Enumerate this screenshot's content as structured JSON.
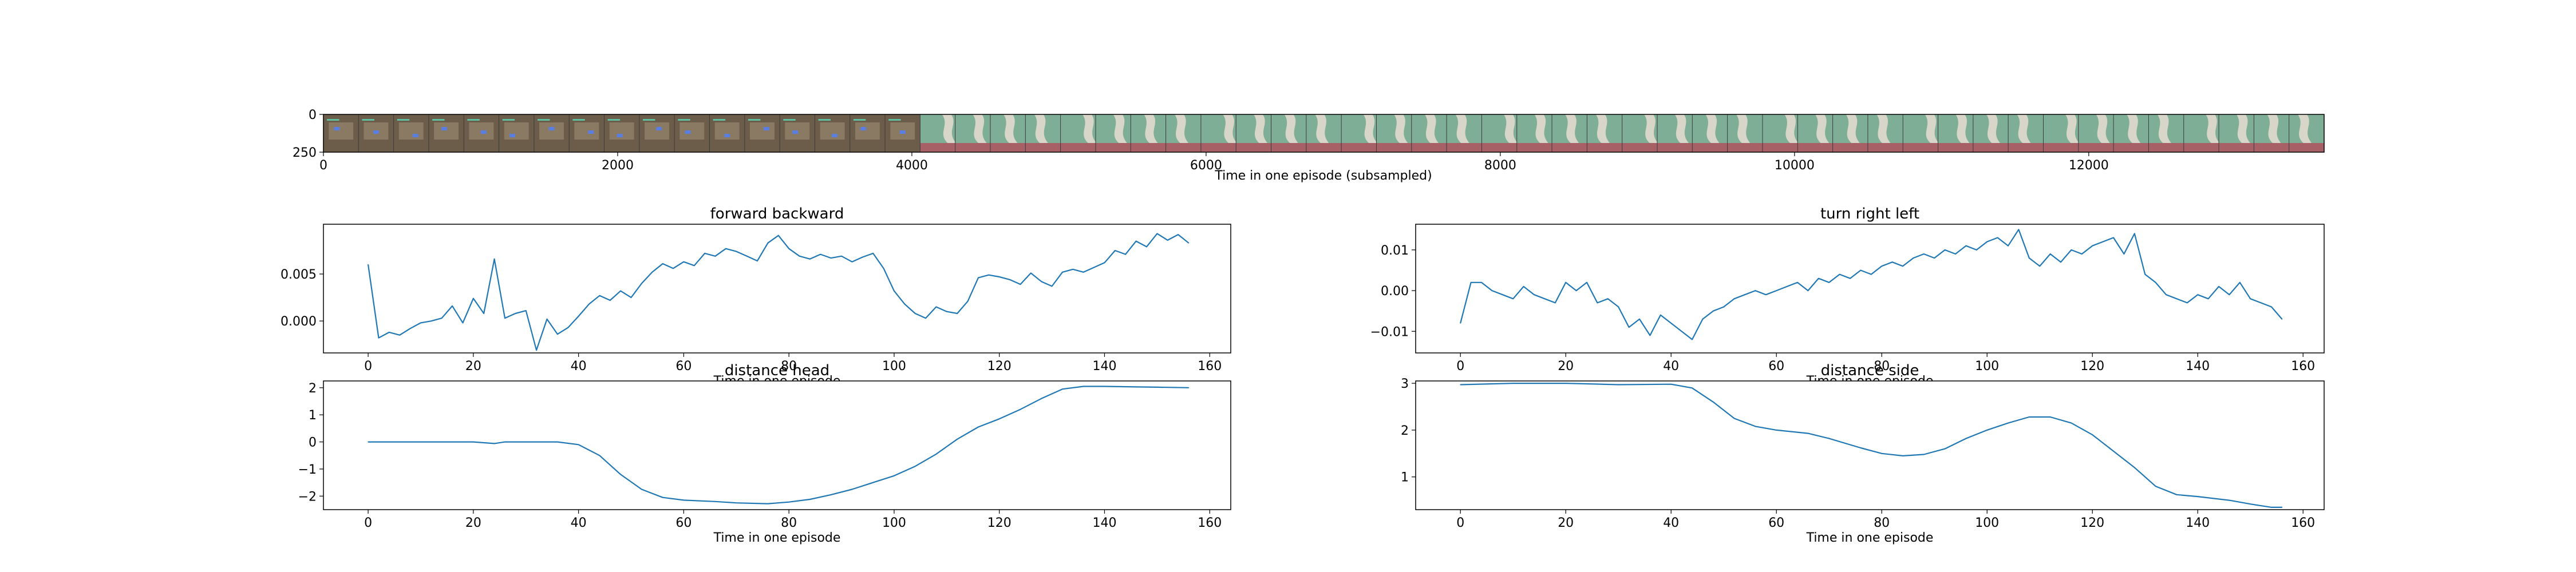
{
  "strip": {
    "xlabel": "Time in one episode (subsampled)",
    "x_ticks": [
      0,
      2000,
      4000,
      6000,
      8000,
      10000,
      12000
    ],
    "y_ticks": [
      0,
      250
    ],
    "x_range": [
      0,
      13600
    ],
    "y_range": [
      0,
      250
    ],
    "frame_count": 57,
    "scene_change_at": 4000,
    "colors": {
      "lab_bg": "#6b5d4a",
      "lab_panel": "#8a7a63",
      "lab_blue": "#5a7fe0",
      "drape_bg": "#7fae97",
      "drape_light": "#d8d6c8",
      "floor": "#a76066"
    }
  },
  "chart_data": [
    {
      "name": "forward-backward",
      "type": "line",
      "title": "forward backward",
      "xlabel": "Time in one episode",
      "ylabel": "",
      "xlim": [
        -8.5,
        164
      ],
      "ylim": [
        -0.0034,
        0.0103
      ],
      "x_ticks": [
        0,
        20,
        40,
        60,
        80,
        100,
        120,
        140,
        160
      ],
      "y_ticks": [
        0.0,
        0.005
      ],
      "y_tick_labels": [
        "0.000",
        "0.005"
      ],
      "x": [
        0,
        2,
        4,
        6,
        8,
        10,
        12,
        14,
        16,
        18,
        20,
        22,
        24,
        26,
        28,
        30,
        32,
        34,
        36,
        38,
        40,
        42,
        44,
        46,
        48,
        50,
        52,
        54,
        56,
        58,
        60,
        62,
        64,
        66,
        68,
        70,
        72,
        74,
        76,
        78,
        80,
        82,
        84,
        86,
        88,
        90,
        92,
        94,
        96,
        98,
        100,
        102,
        104,
        106,
        108,
        110,
        112,
        114,
        116,
        118,
        120,
        122,
        124,
        126,
        128,
        130,
        132,
        134,
        136,
        138,
        140,
        142,
        144,
        146,
        148,
        150,
        152,
        154,
        156
      ],
      "y": [
        0.006,
        -0.0018,
        -0.0012,
        -0.0015,
        -0.0008,
        -0.0002,
        0.0,
        0.0003,
        0.0016,
        -0.0002,
        0.0024,
        0.0008,
        0.0066,
        0.0003,
        0.0008,
        0.0011,
        -0.0031,
        0.0002,
        -0.0014,
        -0.0007,
        0.0005,
        0.0018,
        0.0027,
        0.0022,
        0.0032,
        0.0025,
        0.004,
        0.0052,
        0.0061,
        0.0056,
        0.0063,
        0.0059,
        0.0072,
        0.0069,
        0.0077,
        0.0074,
        0.0069,
        0.0064,
        0.0083,
        0.0091,
        0.0077,
        0.0069,
        0.0066,
        0.0071,
        0.0067,
        0.0069,
        0.0063,
        0.0068,
        0.0072,
        0.0056,
        0.0032,
        0.0018,
        0.0008,
        0.0003,
        0.0015,
        0.001,
        0.0008,
        0.0021,
        0.0046,
        0.0049,
        0.0047,
        0.0044,
        0.0039,
        0.0051,
        0.0042,
        0.0037,
        0.0052,
        0.0055,
        0.0052,
        0.0057,
        0.0062,
        0.0075,
        0.0071,
        0.0085,
        0.0079,
        0.0093,
        0.0086,
        0.0092,
        0.0083
      ]
    },
    {
      "name": "turn-right-left",
      "type": "line",
      "title": "turn right left",
      "xlabel": "Time in one episode",
      "ylabel": "",
      "xlim": [
        -8.5,
        164
      ],
      "ylim": [
        -0.0153,
        0.0163
      ],
      "x_ticks": [
        0,
        20,
        40,
        60,
        80,
        100,
        120,
        140,
        160
      ],
      "y_ticks": [
        -0.01,
        0.0,
        0.01
      ],
      "y_tick_labels": [
        "−0.01",
        "0.00",
        "0.01"
      ],
      "x": [
        0,
        2,
        4,
        6,
        8,
        10,
        12,
        14,
        16,
        18,
        20,
        22,
        24,
        26,
        28,
        30,
        32,
        34,
        36,
        38,
        40,
        42,
        44,
        46,
        48,
        50,
        52,
        54,
        56,
        58,
        60,
        62,
        64,
        66,
        68,
        70,
        72,
        74,
        76,
        78,
        80,
        82,
        84,
        86,
        88,
        90,
        92,
        94,
        96,
        98,
        100,
        102,
        104,
        106,
        108,
        110,
        112,
        114,
        116,
        118,
        120,
        122,
        124,
        126,
        128,
        130,
        132,
        134,
        136,
        138,
        140,
        142,
        144,
        146,
        148,
        150,
        152,
        154,
        156
      ],
      "y": [
        -0.008,
        0.002,
        0.002,
        0.0,
        -0.001,
        -0.002,
        0.001,
        -0.001,
        -0.002,
        -0.003,
        0.002,
        0.0,
        0.002,
        -0.003,
        -0.002,
        -0.004,
        -0.009,
        -0.007,
        -0.011,
        -0.006,
        -0.008,
        -0.01,
        -0.012,
        -0.007,
        -0.005,
        -0.004,
        -0.002,
        -0.001,
        0.0,
        -0.001,
        0.0,
        0.001,
        0.002,
        0.0,
        0.003,
        0.002,
        0.004,
        0.003,
        0.005,
        0.004,
        0.006,
        0.007,
        0.006,
        0.008,
        0.009,
        0.008,
        0.01,
        0.009,
        0.011,
        0.01,
        0.012,
        0.013,
        0.011,
        0.015,
        0.008,
        0.006,
        0.009,
        0.007,
        0.01,
        0.009,
        0.011,
        0.012,
        0.013,
        0.009,
        0.014,
        0.004,
        0.002,
        -0.001,
        -0.002,
        -0.003,
        -0.001,
        -0.002,
        0.001,
        -0.001,
        0.002,
        -0.002,
        -0.003,
        -0.004,
        -0.007
      ]
    },
    {
      "name": "distance-head",
      "type": "line",
      "title": "distance head",
      "xlabel": "Time in one episode",
      "ylabel": "",
      "xlim": [
        -8.5,
        164
      ],
      "ylim": [
        -2.5,
        2.25
      ],
      "x_ticks": [
        0,
        20,
        40,
        60,
        80,
        100,
        120,
        140,
        160
      ],
      "y_ticks": [
        -2,
        -1,
        0,
        1,
        2
      ],
      "y_tick_labels": [
        "−2",
        "−1",
        "0",
        "1",
        "2"
      ],
      "x": [
        0,
        10,
        20,
        24,
        26,
        30,
        36,
        40,
        44,
        48,
        52,
        56,
        60,
        66,
        70,
        76,
        80,
        84,
        88,
        92,
        96,
        100,
        104,
        108,
        112,
        116,
        120,
        124,
        128,
        132,
        136,
        140,
        146,
        150,
        156
      ],
      "y": [
        0,
        0,
        0,
        -0.06,
        0,
        0,
        0,
        -0.1,
        -0.5,
        -1.2,
        -1.75,
        -2.05,
        -2.15,
        -2.2,
        -2.25,
        -2.28,
        -2.22,
        -2.12,
        -1.95,
        -1.75,
        -1.5,
        -1.25,
        -0.9,
        -0.45,
        0.1,
        0.55,
        0.85,
        1.2,
        1.6,
        1.95,
        2.05,
        2.05,
        2.03,
        2.02,
        2.0
      ]
    },
    {
      "name": "distance-side",
      "type": "line",
      "title": "distance side",
      "xlabel": "Time in one episode",
      "ylabel": "",
      "xlim": [
        -8.5,
        164
      ],
      "ylim": [
        0.3,
        3.05
      ],
      "x_ticks": [
        0,
        20,
        40,
        60,
        80,
        100,
        120,
        140,
        160
      ],
      "y_ticks": [
        1,
        2,
        3
      ],
      "y_tick_labels": [
        "1",
        "2",
        "3"
      ],
      "x": [
        0,
        10,
        20,
        30,
        40,
        44,
        48,
        52,
        56,
        60,
        66,
        70,
        76,
        80,
        84,
        88,
        92,
        96,
        100,
        104,
        108,
        112,
        116,
        120,
        124,
        128,
        132,
        136,
        140,
        146,
        150,
        154,
        156
      ],
      "y": [
        2.97,
        3.0,
        3.0,
        2.97,
        2.98,
        2.9,
        2.6,
        2.25,
        2.08,
        2.0,
        1.93,
        1.82,
        1.62,
        1.5,
        1.45,
        1.48,
        1.6,
        1.82,
        2.0,
        2.15,
        2.28,
        2.28,
        2.15,
        1.9,
        1.55,
        1.2,
        0.8,
        0.62,
        0.58,
        0.5,
        0.42,
        0.35,
        0.35
      ]
    }
  ]
}
